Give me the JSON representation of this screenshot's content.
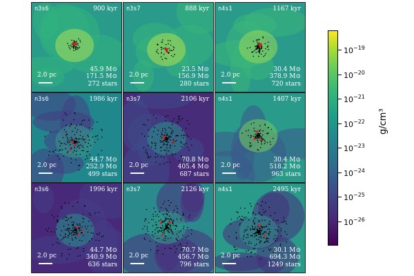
{
  "panels": [
    {
      "label": "n3s6",
      "time": "900 kyr",
      "scale": "2.0 pc",
      "mass1": "45.9 M⊙",
      "mass2": "171.5 M⊙",
      "stars": "272 stars",
      "bg": "#2a9a8a",
      "core": "#9fd85a",
      "blob": "#31b27d",
      "n_stars": 60,
      "spread": 6
    },
    {
      "label": "n3s7",
      "time": "888 kyr",
      "scale": "2.0 pc",
      "mass1": "23.5 M⊙",
      "mass2": "156.9 M⊙",
      "stars": "280 stars",
      "bg": "#2a9a8a",
      "core": "#a5da55",
      "blob": "#35b47a",
      "n_stars": 60,
      "spread": 8
    },
    {
      "label": "n4s1",
      "time": "1167 kyr",
      "scale": "2.0 pc",
      "mass1": "30.4 M⊙",
      "mass2": "378.9 M⊙",
      "stars": "720 stars",
      "bg": "#2a9a8a",
      "core": "#8fd35e",
      "blob": "#3ab77a",
      "n_stars": 90,
      "spread": 8
    },
    {
      "label": "n3s6",
      "time": "1986 kyr",
      "scale": "2.0 pc",
      "mass1": "44.7 M⊙",
      "mass2": "252.9 M⊙",
      "stars": "499 stars",
      "bg": "#20888c",
      "core": "#3a8f8a",
      "blob": "#433e85",
      "n_stars": 160,
      "spread": 22
    },
    {
      "label": "n3s7",
      "time": "2106 kyr",
      "scale": "2.0 pc",
      "mass1": "70.8 M⊙",
      "mass2": "405.4 M⊙",
      "stars": "687 stars",
      "bg": "#472c7a",
      "core": "#2a8a8a",
      "blob": "#3e4a89",
      "n_stars": 200,
      "spread": 20
    },
    {
      "label": "n4s1",
      "time": "1407 kyr",
      "scale": "2.0 pc",
      "mass1": "30.4 M⊙",
      "mass2": "518.2 M⊙",
      "stars": "963 stars",
      "bg": "#2a9a8a",
      "core": "#6fc762",
      "blob": "#3b5a8c",
      "n_stars": 110,
      "spread": 12
    },
    {
      "label": "n3s6",
      "time": "1996 kyr",
      "scale": "2.0 pc",
      "mass1": "44.7 M⊙",
      "mass2": "340.9 M⊙",
      "stars": "636 stars",
      "bg": "#482878",
      "core": "#2a8a8a",
      "blob": "#433e85",
      "n_stars": 180,
      "spread": 22
    },
    {
      "label": "n3s7",
      "time": "2126 kyr",
      "scale": "2.0 pc",
      "mass1": "70.7 M⊙",
      "mass2": "456.7 M⊙",
      "stars": "796 stars",
      "bg": "#2a8a8c",
      "core": "#2f9a88",
      "blob": "#4b2f80",
      "n_stars": 220,
      "spread": 20
    },
    {
      "label": "n4s1",
      "time": "2495 kyr",
      "scale": "2.0 pc",
      "mass1": "30.1 M⊙",
      "mass2": "694.3 M⊙",
      "stars": "1249 stars",
      "bg": "#2a9a8a",
      "core": "#2e8f8a",
      "blob": "#46307c",
      "n_stars": 260,
      "spread": 22
    }
  ],
  "colorbar": {
    "unit": "g/cm³",
    "ticks": [
      {
        "base": "10",
        "exp": "−19"
      },
      {
        "base": "10",
        "exp": "−20"
      },
      {
        "base": "10",
        "exp": "−21"
      },
      {
        "base": "10",
        "exp": "−22"
      },
      {
        "base": "10",
        "exp": "−23"
      },
      {
        "base": "10",
        "exp": "−24"
      },
      {
        "base": "10",
        "exp": "−25"
      },
      {
        "base": "10",
        "exp": "−26"
      }
    ]
  }
}
